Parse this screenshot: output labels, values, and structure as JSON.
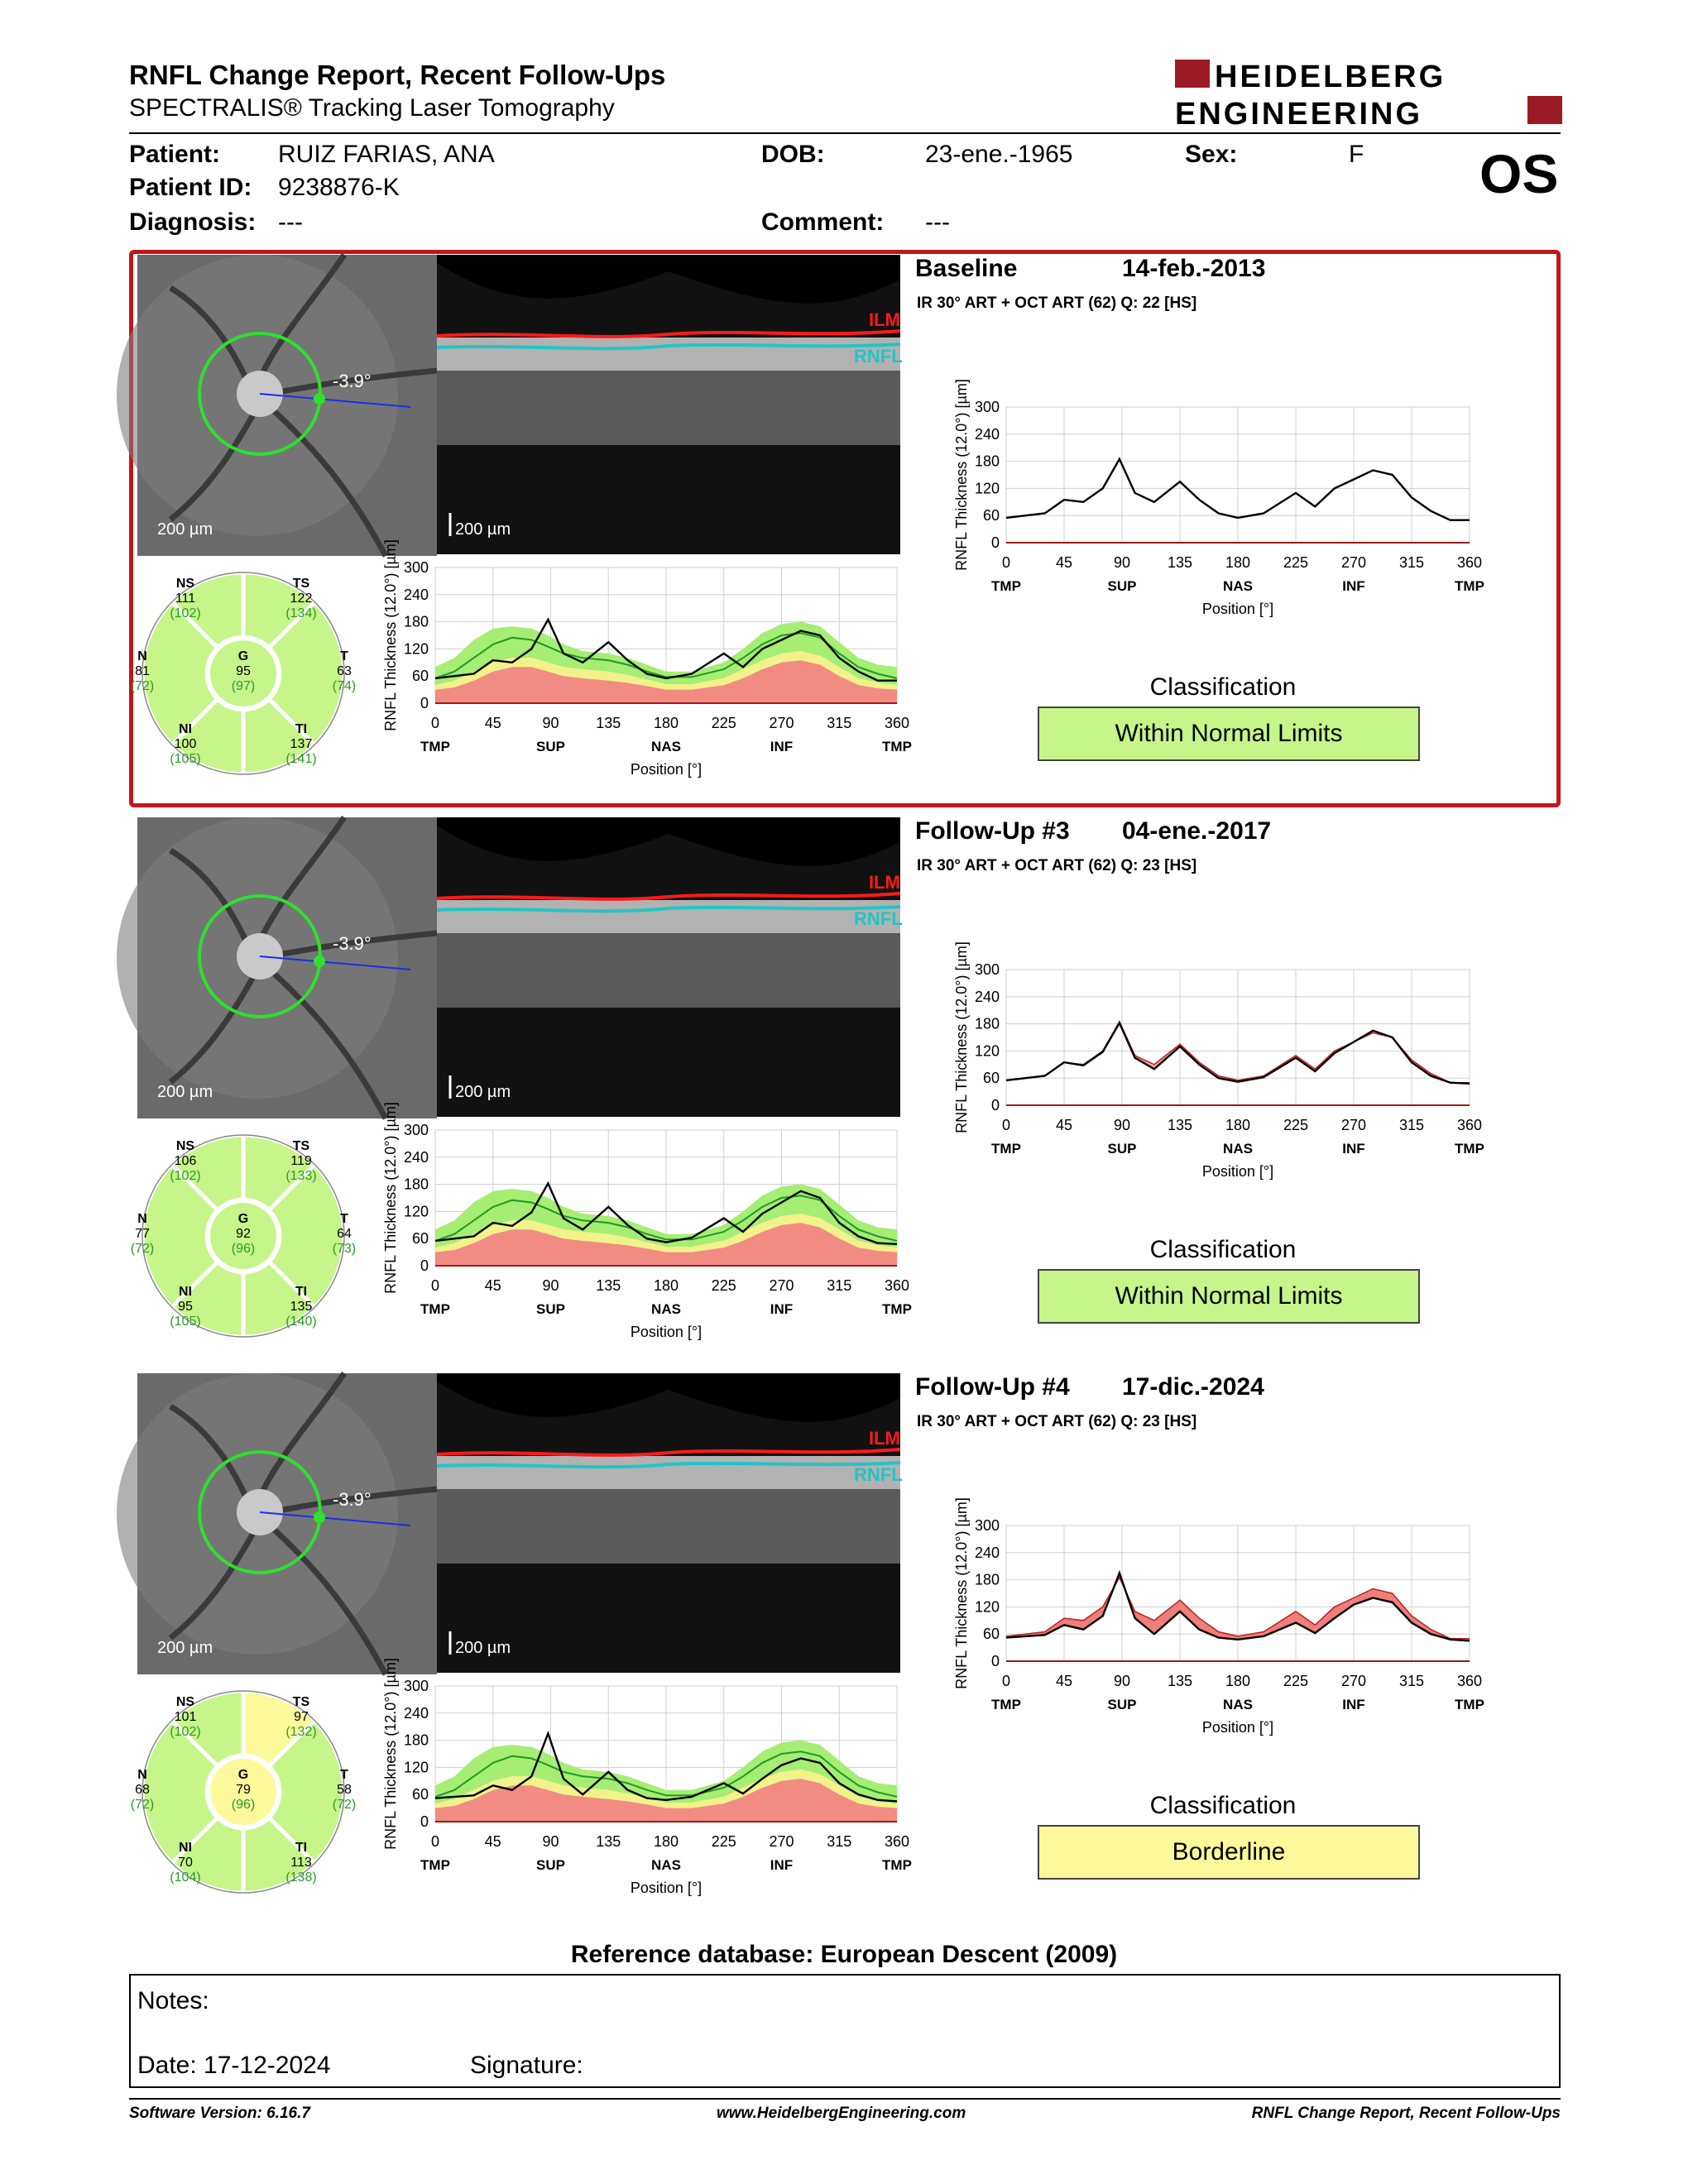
{
  "header": {
    "title": "RNFL Change Report, Recent Follow-Ups",
    "subtitle": "SPECTRALIS® Tracking Laser Tomography",
    "logo_line1": "HEIDELBERG",
    "logo_line2": "ENGINEERING",
    "eye": "OS"
  },
  "patient": {
    "patient_label": "Patient:",
    "patient_name": "RUIZ FARIAS, ANA",
    "id_label": "Patient ID:",
    "patient_id": "9238876-K",
    "diagnosis_label": "Diagnosis:",
    "diagnosis": "---",
    "dob_label": "DOB:",
    "dob": "23-ene.-1965",
    "comment_label": "Comment:",
    "comment": "---",
    "sex_label": "Sex:",
    "sex": "F"
  },
  "common": {
    "ilm": "ILM",
    "rnfl": "RNFL",
    "scale": "200 µm",
    "angle": "-3.9°",
    "ylabel": "RNFL Thickness (12.0°) [µm]",
    "xlabel": "Position [°]",
    "yticks": [
      "0",
      "60",
      "120",
      "180",
      "240",
      "300"
    ],
    "xticks": [
      "0",
      "45",
      "90",
      "135",
      "180",
      "225",
      "270",
      "315",
      "360"
    ],
    "xregions": [
      "TMP",
      "SUP",
      "NAS",
      "INF",
      "TMP"
    ],
    "classification_label": "Classification",
    "sector_names": [
      "NS",
      "TS",
      "N",
      "G",
      "T",
      "NI",
      "TI"
    ]
  },
  "exams": [
    {
      "name": "Baseline",
      "date": "14-feb.-2013",
      "meta": "IR 30° ART + OCT ART (62) Q: 22 [HS]",
      "classification": "Within Normal Limits",
      "class_color": "#c6f58a",
      "sectors": {
        "NS": [
          "111",
          "(102)"
        ],
        "TS": [
          "122",
          "(134)"
        ],
        "N": [
          "81",
          "(72)"
        ],
        "G": [
          "95",
          "(97)"
        ],
        "T": [
          "63",
          "(74)"
        ],
        "NI": [
          "100",
          "(105)"
        ],
        "TI": [
          "137",
          "(141)"
        ]
      },
      "sector_colors": {
        "NS": "#c6f58a",
        "TS": "#c6f58a",
        "N": "#c6f58a",
        "G": "#c6f58a",
        "T": "#c6f58a",
        "NI": "#c6f58a",
        "TI": "#c6f58a"
      }
    },
    {
      "name": "Follow-Up #3",
      "date": "04-ene.-2017",
      "meta": "IR 30° ART + OCT ART (62) Q: 23 [HS]",
      "classification": "Within Normal Limits",
      "class_color": "#c6f58a",
      "sectors": {
        "NS": [
          "106",
          "(102)"
        ],
        "TS": [
          "119",
          "(133)"
        ],
        "N": [
          "77",
          "(72)"
        ],
        "G": [
          "92",
          "(96)"
        ],
        "T": [
          "64",
          "(73)"
        ],
        "NI": [
          "95",
          "(105)"
        ],
        "TI": [
          "135",
          "(140)"
        ]
      },
      "sector_colors": {
        "NS": "#c6f58a",
        "TS": "#c6f58a",
        "N": "#c6f58a",
        "G": "#c6f58a",
        "T": "#c6f58a",
        "NI": "#c6f58a",
        "TI": "#c6f58a"
      }
    },
    {
      "name": "Follow-Up #4",
      "date": "17-dic.-2024",
      "meta": "IR 30° ART + OCT ART (62) Q: 23 [HS]",
      "classification": "Borderline",
      "class_color": "#fbf99a",
      "sectors": {
        "NS": [
          "101",
          "(102)"
        ],
        "TS": [
          "97",
          "(132)"
        ],
        "N": [
          "68",
          "(72)"
        ],
        "G": [
          "79",
          "(96)"
        ],
        "T": [
          "58",
          "(72)"
        ],
        "NI": [
          "70",
          "(104)"
        ],
        "TI": [
          "113",
          "(138)"
        ]
      },
      "sector_colors": {
        "NS": "#c6f58a",
        "TS": "#fbf99a",
        "N": "#c6f58a",
        "G": "#fbf99a",
        "T": "#c6f58a",
        "NI": "#c6f58a",
        "TI": "#c6f58a"
      }
    }
  ],
  "chart_data": {
    "type": "line",
    "xlabel": "Position [°]",
    "ylabel": "RNFL Thickness (12.0°) [µm]",
    "xlim": [
      0,
      360
    ],
    "ylim": [
      0,
      300
    ],
    "x": [
      0,
      15,
      30,
      45,
      60,
      75,
      88,
      100,
      115,
      135,
      150,
      165,
      180,
      200,
      225,
      240,
      255,
      270,
      285,
      300,
      315,
      330,
      345,
      360
    ],
    "normal_upper": [
      80,
      100,
      140,
      165,
      170,
      165,
      150,
      130,
      115,
      110,
      100,
      85,
      70,
      70,
      90,
      120,
      155,
      175,
      180,
      170,
      135,
      100,
      85,
      80
    ],
    "normal_mean": [
      55,
      70,
      100,
      130,
      145,
      140,
      125,
      110,
      100,
      95,
      85,
      70,
      58,
      58,
      75,
      100,
      130,
      150,
      155,
      145,
      110,
      80,
      65,
      55
    ],
    "borderline_lower": [
      40,
      50,
      70,
      90,
      100,
      100,
      90,
      80,
      75,
      70,
      62,
      52,
      42,
      42,
      55,
      75,
      95,
      110,
      115,
      105,
      80,
      55,
      45,
      40
    ],
    "outside_lower": [
      30,
      35,
      50,
      70,
      80,
      80,
      70,
      60,
      55,
      50,
      45,
      38,
      30,
      30,
      40,
      55,
      75,
      90,
      95,
      85,
      60,
      40,
      33,
      30
    ],
    "series": [
      {
        "name": "Baseline",
        "values": [
          55,
          60,
          65,
          95,
          90,
          120,
          185,
          110,
          90,
          135,
          95,
          65,
          55,
          65,
          110,
          80,
          120,
          140,
          160,
          150,
          100,
          70,
          50,
          50
        ]
      },
      {
        "name": "Follow-Up #3",
        "values": [
          55,
          60,
          65,
          95,
          88,
          118,
          182,
          105,
          80,
          130,
          90,
          60,
          52,
          62,
          105,
          75,
          115,
          140,
          165,
          150,
          95,
          65,
          50,
          48
        ]
      },
      {
        "name": "Follow-Up #4",
        "values": [
          52,
          55,
          58,
          80,
          70,
          100,
          195,
          95,
          60,
          110,
          70,
          52,
          48,
          55,
          85,
          62,
          95,
          125,
          140,
          130,
          85,
          60,
          48,
          45
        ]
      }
    ]
  },
  "footer": {
    "reference": "Reference database: European Descent (2009)",
    "notes_label": "Notes:",
    "date_label": "Date: 17-12-2024",
    "signature_label": "Signature:",
    "software": "Software Version: 6.16.7",
    "website": "www.HeidelbergEngineering.com",
    "report_name": "RNFL Change Report, Recent Follow-Ups"
  }
}
